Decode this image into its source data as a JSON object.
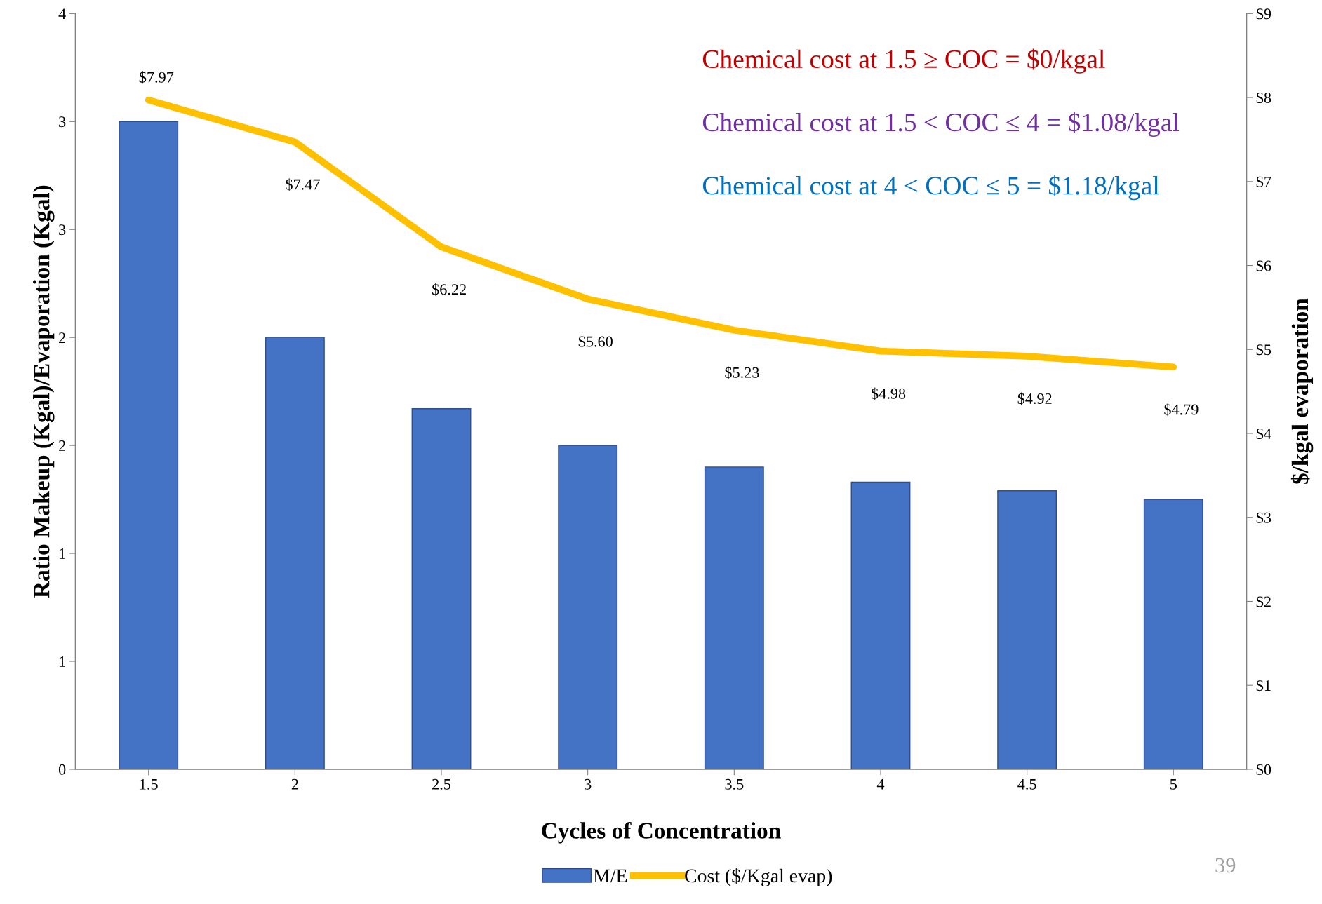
{
  "chart_data": {
    "type": "bar",
    "xlabel": "Cycles of Concentration",
    "ylabel": "Ratio Makeup (Kgal)/Evaporation (Kgal)",
    "y2label": "$/kgal evaporation",
    "categories": [
      "1.5",
      "2",
      "2.5",
      "3",
      "3.5",
      "4",
      "4.5",
      "5"
    ],
    "series": [
      {
        "name": "M/E",
        "color": "#4472c4",
        "values": [
          3.0,
          2.0,
          1.67,
          1.5,
          1.4,
          1.33,
          1.29,
          1.25
        ]
      },
      {
        "name": "Cost ($/Kgal evap)",
        "type": "line",
        "axis": "y2",
        "color": "#ffc000",
        "values": [
          7.97,
          7.47,
          6.22,
          5.6,
          5.23,
          4.98,
          4.92,
          4.79
        ],
        "value_labels": [
          "$7.97",
          "$7.47",
          "$6.22",
          "$5.60",
          "$5.23",
          "$4.98",
          "$4.92",
          "$4.79"
        ]
      }
    ],
    "ylim": [
      0,
      3.5
    ],
    "yticks": [
      0,
      {
        "value": 0.5,
        "label": "1"
      },
      {
        "value": 1,
        "label": "1"
      },
      {
        "value": 1.5,
        "label": "2"
      },
      {
        "value": 2,
        "label": "2"
      },
      {
        "value": 2.5,
        "label": "3"
      },
      {
        "value": 3,
        "label": "3"
      },
      {
        "value": 3.5,
        "label": "4"
      }
    ],
    "y2lim": [
      0,
      9
    ],
    "y2ticks": [
      {
        "value": 0,
        "label": "$0"
      },
      {
        "value": 1,
        "label": "$1"
      },
      {
        "value": 2,
        "label": "$2"
      },
      {
        "value": 3,
        "label": "$3"
      },
      {
        "value": 4,
        "label": "$4"
      },
      {
        "value": 5,
        "label": "$5"
      },
      {
        "value": 6,
        "label": "$6"
      },
      {
        "value": 7,
        "label": "$7"
      },
      {
        "value": 8,
        "label": "$8"
      },
      {
        "value": 9,
        "label": "$9"
      }
    ],
    "annotations": [
      "Chemical cost at 1.5 ≥ COC = $0/kgal",
      "Chemical cost at 1.5 < COC ≤ 4 = $1.08/kgal",
      "Chemical cost at 4 < COC ≤ 5 = $1.18/kgal",
      "39"
    ],
    "grid": false,
    "legend": "bottom",
    "marker": "none",
    "line_style": "solid"
  }
}
